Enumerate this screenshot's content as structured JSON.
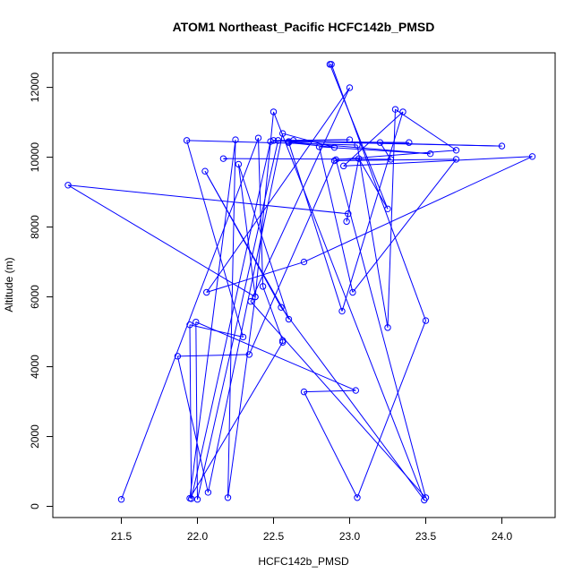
{
  "chart_data": {
    "type": "scatter",
    "title": "ATOM1 Northeast_Pacific HCFC142b_PMSD",
    "xlabel": "HCFC142b_PMSD",
    "ylabel": "Altitude (m)",
    "xlim": [
      21.05,
      24.35
    ],
    "ylim": [
      -320,
      12990
    ],
    "xticks": [
      21.5,
      22.0,
      22.5,
      23.0,
      23.5,
      24.0
    ],
    "xtick_labels": [
      "21.5",
      "22.0",
      "22.5",
      "23.0",
      "23.5",
      "24.0"
    ],
    "yticks": [
      0,
      2000,
      4000,
      6000,
      8000,
      10000,
      12000
    ],
    "ytick_labels": [
      "0",
      "2000",
      "4000",
      "6000",
      "8000",
      "10000",
      "12000"
    ],
    "grid": false,
    "series": [
      {
        "color": "#0000ff",
        "style": "line-with-open-circles",
        "x": [
          21.5,
          22.4,
          22.43,
          22.56,
          22.56,
          21.95,
          22.25,
          22.2,
          22.38,
          22.27,
          22.6,
          22.05,
          22.55,
          23.49,
          22.5,
          22.38,
          21.15,
          22.99,
          22.98,
          23.06,
          23.25,
          22.87,
          22.88,
          23.5,
          23.05,
          22.7,
          23.04,
          21.99,
          22.0,
          22.53,
          23.0,
          22.63,
          22.48,
          21.96,
          21.95,
          22.3,
          21.93,
          23.05,
          23.25,
          23.3,
          23.7,
          22.91,
          23.5,
          22.35,
          23.0,
          22.06,
          22.7,
          24.2,
          22.96,
          23.35,
          22.95,
          22.6,
          22.9,
          22.56,
          22.07,
          21.87,
          22.34,
          22.9,
          23.7,
          23.02,
          22.8,
          23.53,
          22.5,
          24.0,
          22.6,
          23.39,
          23.2,
          23.27,
          22.17
        ],
        "y": [
          200,
          10550,
          6300,
          4750,
          4700,
          230,
          10500,
          250,
          6000,
          9800,
          5360,
          9600,
          5700,
          180,
          11300,
          6000,
          9200,
          8380,
          8160,
          9960,
          8520,
          12660,
          12660,
          5320,
          250,
          3280,
          3320,
          5280,
          200,
          10480,
          10500,
          10480,
          10450,
          220,
          5200,
          4850,
          10480,
          10350,
          5120,
          11370,
          10200,
          9930,
          250,
          5870,
          11990,
          6130,
          7000,
          10020,
          9750,
          11300,
          5590,
          10420,
          10280,
          10680,
          400,
          4300,
          4350,
          9900,
          9940,
          6130,
          10300,
          10100,
          10480,
          10320,
          10450,
          10420,
          10420,
          9940,
          9960
        ]
      }
    ]
  }
}
